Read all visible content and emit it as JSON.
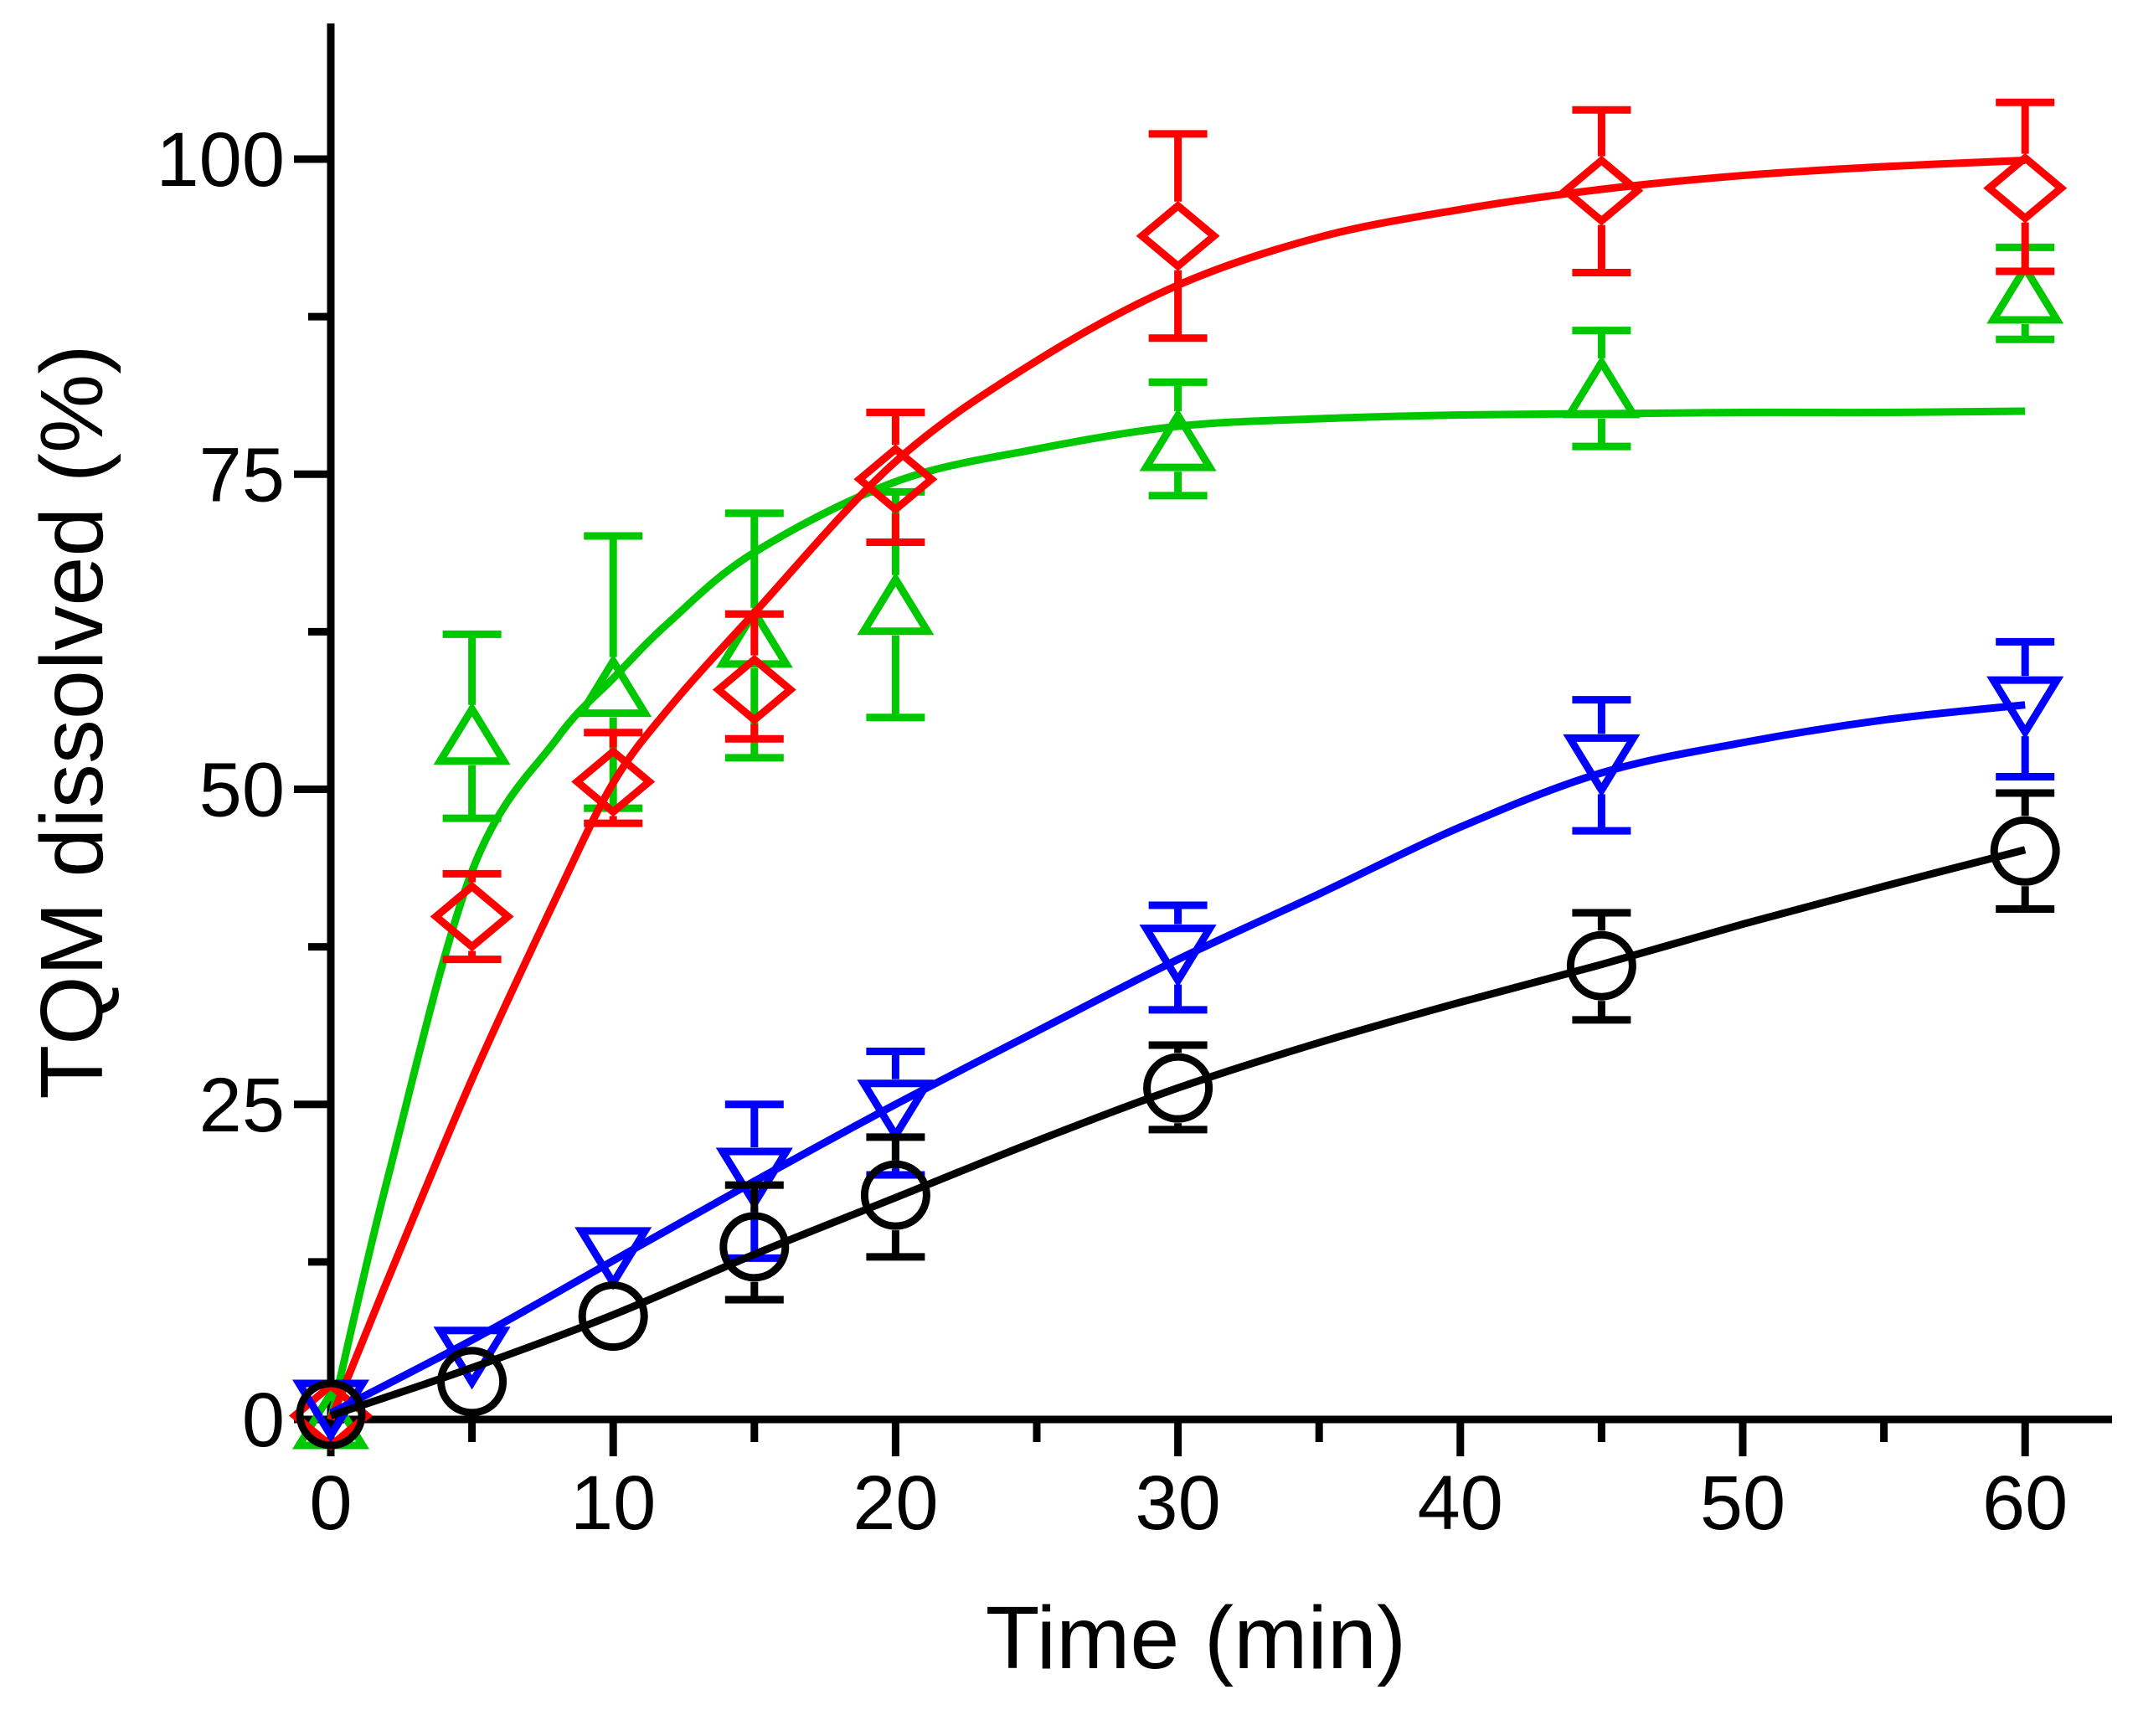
{
  "chart_data": {
    "type": "line",
    "title": "",
    "xlabel": "Time (min)",
    "ylabel": "TQM dissolved (%)",
    "xlim": [
      0,
      63
    ],
    "ylim": [
      0,
      110.8
    ],
    "grid": false,
    "legend_position": "none",
    "background_color": "#FFFFFF",
    "axis_color": "#000000",
    "x_major_ticks": [
      0,
      10,
      20,
      30,
      40,
      50,
      60
    ],
    "x_minor_ticks": [
      5,
      15,
      25,
      35,
      45,
      55
    ],
    "y_major_ticks": [
      0,
      25,
      50,
      75,
      100
    ],
    "y_minor_ticks": [
      12.5,
      37.5,
      62.5,
      87.5
    ],
    "series": [
      {
        "name": "green-open-up-triangles",
        "marker": "triangle-up",
        "color": "#00C800",
        "points": [
          [
            0,
            0.0,
            null,
            null
          ],
          [
            5,
            54.3,
            62.3,
            47.7
          ],
          [
            10,
            58.1,
            70.1,
            48.5
          ],
          [
            15,
            62.0,
            71.9,
            52.5
          ],
          [
            20,
            64.6,
            73.6,
            55.7
          ],
          [
            30,
            77.6,
            82.3,
            73.3
          ],
          [
            45,
            81.8,
            86.4,
            77.2
          ],
          [
            60,
            89.3,
            93.0,
            85.7
          ]
        ],
        "fit_curve": [
          [
            0,
            0
          ],
          [
            2,
            19
          ],
          [
            5,
            43.5
          ],
          [
            8,
            54
          ],
          [
            10,
            58.8
          ],
          [
            12,
            63.3
          ],
          [
            15,
            68.8
          ],
          [
            20,
            74.4
          ],
          [
            25,
            77
          ],
          [
            30,
            78.8
          ],
          [
            35,
            79.4
          ],
          [
            40,
            79.7
          ],
          [
            45,
            79.8
          ],
          [
            50,
            79.9
          ],
          [
            55,
            79.9
          ],
          [
            60,
            80
          ]
        ]
      },
      {
        "name": "red-open-diamonds",
        "marker": "diamond",
        "color": "#FF0000",
        "points": [
          [
            0,
            0.3,
            null,
            null
          ],
          [
            5,
            39.9,
            43.3,
            36.5
          ],
          [
            10,
            50.6,
            54.5,
            47.3
          ],
          [
            15,
            57.9,
            63.9,
            54.0
          ],
          [
            20,
            74.6,
            79.9,
            69.6
          ],
          [
            30,
            93.9,
            102.0,
            85.8
          ],
          [
            45,
            97.5,
            103.9,
            91.0
          ],
          [
            60,
            97.7,
            104.5,
            91.1
          ]
        ],
        "fit_curve": [
          [
            0,
            0
          ],
          [
            2,
            11
          ],
          [
            5,
            27
          ],
          [
            8,
            41.5
          ],
          [
            10,
            50.5
          ],
          [
            12,
            56.5
          ],
          [
            15,
            64
          ],
          [
            20,
            76
          ],
          [
            25,
            84
          ],
          [
            30,
            90
          ],
          [
            35,
            93.8
          ],
          [
            40,
            96
          ],
          [
            45,
            97.6
          ],
          [
            50,
            98.7
          ],
          [
            55,
            99.4
          ],
          [
            60,
            99.9
          ]
        ]
      },
      {
        "name": "blue-open-down-triangles",
        "marker": "triangle-down",
        "color": "#0000FF",
        "points": [
          [
            0,
            0.8,
            null,
            null
          ],
          [
            5,
            5.0,
            null,
            null
          ],
          [
            10,
            12.9,
            null,
            null
          ],
          [
            15,
            19.2,
            25.0,
            12.8
          ],
          [
            20,
            24.6,
            29.2,
            19.4
          ],
          [
            30,
            36.9,
            40.8,
            32.5
          ],
          [
            45,
            52.0,
            57.1,
            46.7
          ],
          [
            60,
            56.6,
            61.7,
            51.0
          ]
        ],
        "fit_curve": [
          [
            0,
            0.5
          ],
          [
            5,
            6.3
          ],
          [
            10,
            12.6
          ],
          [
            15,
            18.9
          ],
          [
            20,
            25
          ],
          [
            25,
            30.8
          ],
          [
            30,
            36.5
          ],
          [
            35,
            41.7
          ],
          [
            40,
            47
          ],
          [
            45,
            51.3
          ],
          [
            50,
            53.7
          ],
          [
            55,
            55.5
          ],
          [
            60,
            56.7
          ]
        ]
      },
      {
        "name": "black-open-circles",
        "marker": "circle",
        "color": "#000000",
        "points": [
          [
            0,
            0.4,
            null,
            null
          ],
          [
            5,
            3.0,
            null,
            null
          ],
          [
            10,
            8.2,
            null,
            null
          ],
          [
            15,
            13.7,
            18.6,
            9.5
          ],
          [
            20,
            17.8,
            22.4,
            12.9
          ],
          [
            30,
            26.3,
            29.7,
            23.0
          ],
          [
            45,
            36.0,
            40.2,
            31.7
          ],
          [
            60,
            45.1,
            49.7,
            40.5
          ]
        ],
        "fit_curve": [
          [
            0,
            0.3
          ],
          [
            5,
            4.1
          ],
          [
            10,
            8.3
          ],
          [
            15,
            13.1
          ],
          [
            20,
            17.6
          ],
          [
            25,
            22.1
          ],
          [
            30,
            26.3
          ],
          [
            35,
            29.9
          ],
          [
            40,
            33.1
          ],
          [
            45,
            36.1
          ],
          [
            50,
            39.3
          ],
          [
            55,
            42.3
          ],
          [
            60,
            45.2
          ]
        ]
      }
    ]
  }
}
